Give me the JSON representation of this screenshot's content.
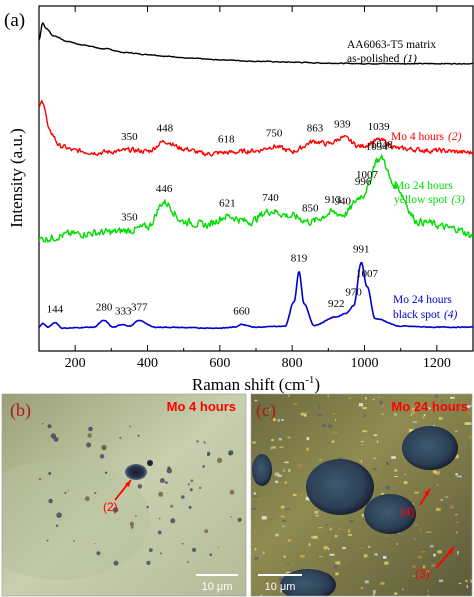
{
  "chart_data": [
    {
      "type": "line",
      "panel_label": "(a)",
      "xlabel": "Raman shift (cm",
      "xlabel_sup": "-1",
      "xlabel_end": ")",
      "ylabel": "Intensity (a.u.)",
      "xlim": [
        100,
        1300
      ],
      "x_ticks": [
        200,
        400,
        600,
        800,
        1000,
        1200
      ],
      "y_ticks": "none",
      "grid": false,
      "series": [
        {
          "name": "AA6063-T5 matrix as-polished (1)",
          "color": "#000000",
          "label_lines": [
            "AA6063-T5 matrix",
            "as-polished"
          ],
          "label_tag": "(1)",
          "points": [
            [
              100,
              0.56
            ],
            [
              110,
              0.92
            ],
            [
              120,
              0.8
            ],
            [
              140,
              0.65
            ],
            [
              180,
              0.53
            ],
            [
              220,
              0.46
            ],
            [
              280,
              0.38
            ],
            [
              340,
              0.3
            ],
            [
              400,
              0.26
            ],
            [
              460,
              0.22
            ],
            [
              520,
              0.18
            ],
            [
              600,
              0.15
            ],
            [
              700,
              0.12
            ],
            [
              800,
              0.1
            ],
            [
              900,
              0.08
            ],
            [
              1000,
              0.07
            ],
            [
              1100,
              0.07
            ],
            [
              1200,
              0.07
            ],
            [
              1300,
              0.07
            ]
          ],
          "noise": 0.012,
          "peaks": []
        },
        {
          "name": "Mo 4 hours (2)",
          "color": "#ff0000",
          "label_lines": [
            "Mo 4 hours"
          ],
          "label_tag": "(2)",
          "points": [
            [
              100,
              0.85
            ],
            [
              110,
              0.95
            ],
            [
              130,
              0.45
            ],
            [
              160,
              0.22
            ],
            [
              200,
              0.15
            ],
            [
              260,
              0.12
            ],
            [
              320,
              0.14
            ],
            [
              350,
              0.16
            ],
            [
              400,
              0.14
            ],
            [
              448,
              0.3
            ],
            [
              500,
              0.18
            ],
            [
              560,
              0.1
            ],
            [
              618,
              0.12
            ],
            [
              700,
              0.15
            ],
            [
              750,
              0.22
            ],
            [
              800,
              0.14
            ],
            [
              863,
              0.3
            ],
            [
              900,
              0.26
            ],
            [
              939,
              0.36
            ],
            [
              990,
              0.22
            ],
            [
              1039,
              0.32
            ],
            [
              1100,
              0.18
            ],
            [
              1200,
              0.15
            ],
            [
              1300,
              0.12
            ]
          ],
          "noise": 0.055,
          "peaks": [
            {
              "x": 350,
              "label": "350"
            },
            {
              "x": 448,
              "label": "448"
            },
            {
              "x": 618,
              "label": "618"
            },
            {
              "x": 750,
              "label": "750"
            },
            {
              "x": 863,
              "label": "863"
            },
            {
              "x": 939,
              "label": "939"
            },
            {
              "x": 1039,
              "label": "1039"
            }
          ]
        },
        {
          "name": "Mo 24 hours yellow spot (3)",
          "color": "#00dd00",
          "label_lines": [
            "Mo 24 hours",
            "yellow spot"
          ],
          "label_tag": "(3)",
          "points": [
            [
              100,
              0.1
            ],
            [
              200,
              0.16
            ],
            [
              300,
              0.18
            ],
            [
              350,
              0.2
            ],
            [
              400,
              0.24
            ],
            [
              446,
              0.52
            ],
            [
              500,
              0.3
            ],
            [
              560,
              0.26
            ],
            [
              621,
              0.36
            ],
            [
              680,
              0.3
            ],
            [
              740,
              0.42
            ],
            [
              800,
              0.36
            ],
            [
              850,
              0.3
            ],
            [
              913,
              0.4
            ],
            [
              940,
              0.38
            ],
            [
              996,
              0.6
            ],
            [
              1007,
              0.68
            ],
            [
              1034,
              1.0
            ],
            [
              1048,
              1.02
            ],
            [
              1080,
              0.72
            ],
            [
              1150,
              0.3
            ],
            [
              1250,
              0.22
            ],
            [
              1300,
              0.14
            ]
          ],
          "noise": 0.06,
          "peaks": [
            {
              "x": 350,
              "label": "350"
            },
            {
              "x": 446,
              "label": "446"
            },
            {
              "x": 621,
              "label": "621"
            },
            {
              "x": 740,
              "label": "740"
            },
            {
              "x": 850,
              "label": "850"
            },
            {
              "x": 913,
              "label": "913"
            },
            {
              "x": 940,
              "label": "940"
            },
            {
              "x": 996,
              "label": "996"
            },
            {
              "x": 1007,
              "label": "1007"
            },
            {
              "x": 1034,
              "label": "1034"
            },
            {
              "x": 1048,
              "label": "1048"
            }
          ]
        },
        {
          "name": "Mo 24 hours black spot (4)",
          "color": "#0000cc",
          "label_lines": [
            "Mo 24 hours",
            "black spot"
          ],
          "label_tag": "(4)",
          "points": [
            [
              100,
              0.03
            ],
            [
              110,
              0.07
            ],
            [
              125,
              0.03
            ],
            [
              144,
              0.08
            ],
            [
              165,
              0.02
            ],
            [
              250,
              0.03
            ],
            [
              280,
              0.1
            ],
            [
              305,
              0.03
            ],
            [
              333,
              0.06
            ],
            [
              350,
              0.04
            ],
            [
              377,
              0.1
            ],
            [
              420,
              0.03
            ],
            [
              600,
              0.02
            ],
            [
              640,
              0.03
            ],
            [
              660,
              0.06
            ],
            [
              700,
              0.03
            ],
            [
              780,
              0.04
            ],
            [
              805,
              0.3
            ],
            [
              819,
              0.62
            ],
            [
              833,
              0.28
            ],
            [
              860,
              0.05
            ],
            [
              922,
              0.14
            ],
            [
              950,
              0.18
            ],
            [
              970,
              0.26
            ],
            [
              991,
              0.72
            ],
            [
              1007,
              0.46
            ],
            [
              1030,
              0.12
            ],
            [
              1100,
              0.04
            ],
            [
              1200,
              0.03
            ],
            [
              1300,
              0.03
            ]
          ],
          "noise": 0.006,
          "peaks": [
            {
              "x": 144,
              "label": "144"
            },
            {
              "x": 280,
              "label": "280"
            },
            {
              "x": 333,
              "label": "333"
            },
            {
              "x": 377,
              "label": "377"
            },
            {
              "x": 660,
              "label": "660"
            },
            {
              "x": 819,
              "label": "819"
            },
            {
              "x": 922,
              "label": "922"
            },
            {
              "x": 970,
              "label": "970"
            },
            {
              "x": 991,
              "label": "991"
            },
            {
              "x": 1007,
              "label": "1007"
            }
          ]
        }
      ]
    },
    {
      "type": "image",
      "panel_label": "(b)",
      "title": "Mo 4 hours",
      "title_color": "#ff0000",
      "annotations": [
        "(2)"
      ],
      "scale_bar": "10 μm"
    },
    {
      "type": "image",
      "panel_label": "(c)",
      "title": "Mo 24 hours",
      "title_color": "#ff0000",
      "annotations": [
        "(4)",
        "(3)"
      ],
      "scale_bar": "10 μm"
    }
  ]
}
